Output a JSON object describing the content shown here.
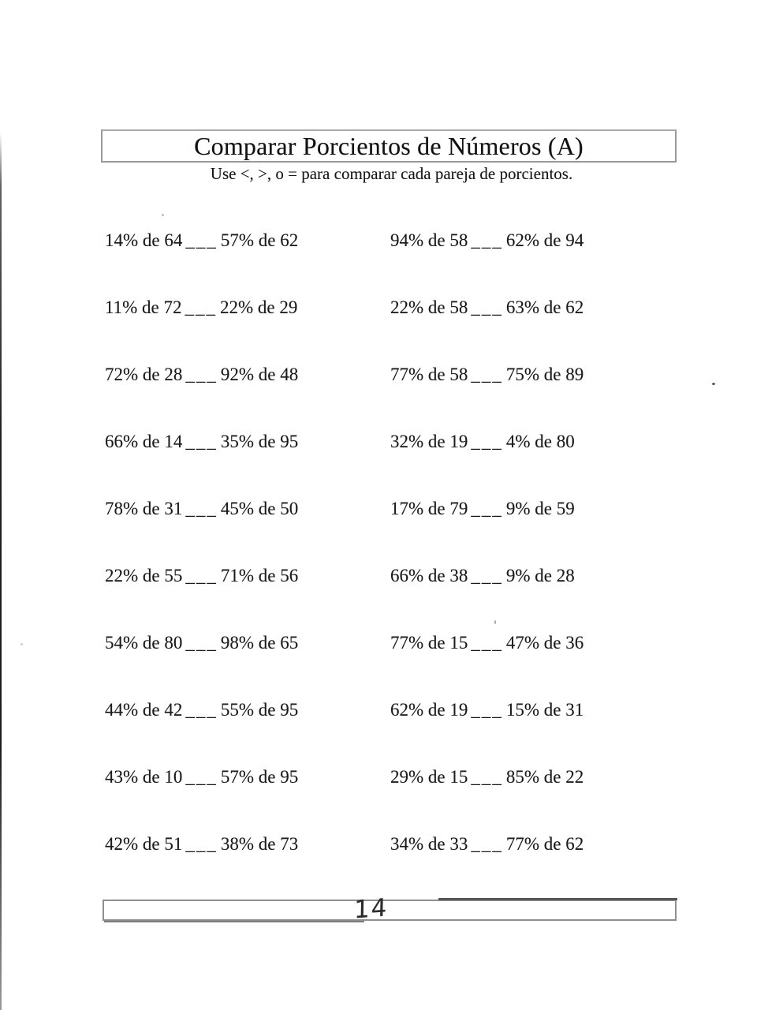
{
  "header": {
    "title": "Comparar Porcientos de Números (A)",
    "instructions": "Use <, >, o = para comparar cada pareja de porcientos."
  },
  "problems": {
    "blank_placeholder": "___",
    "rows": [
      {
        "left": {
          "a": "14% de 64",
          "b": "57% de 62"
        },
        "right": {
          "a": "94% de 58",
          "b": "62% de 94"
        }
      },
      {
        "left": {
          "a": "11% de 72",
          "b": "22% de 29"
        },
        "right": {
          "a": "22% de 58",
          "b": "63% de 62"
        }
      },
      {
        "left": {
          "a": "72% de 28",
          "b": "92% de 48"
        },
        "right": {
          "a": "77% de 58",
          "b": "75% de 89"
        }
      },
      {
        "left": {
          "a": "66% de 14",
          "b": "35% de 95"
        },
        "right": {
          "a": "32% de 19",
          "b": "4% de 80"
        }
      },
      {
        "left": {
          "a": "78% de 31",
          "b": "45% de 50"
        },
        "right": {
          "a": "17% de 79",
          "b": "9% de 59"
        }
      },
      {
        "left": {
          "a": "22% de 55",
          "b": "71% de 56"
        },
        "right": {
          "a": "66% de 38",
          "b": "9% de 28"
        }
      },
      {
        "left": {
          "a": "54% de 80",
          "b": "98% de 65"
        },
        "right": {
          "a": "77% de 15",
          "b": "47% de 36"
        }
      },
      {
        "left": {
          "a": "44% de 42",
          "b": "55% de 95"
        },
        "right": {
          "a": "62% de 19",
          "b": "15% de 31"
        }
      },
      {
        "left": {
          "a": "43% de 10",
          "b": "57% de 95"
        },
        "right": {
          "a": "29% de 15",
          "b": "85% de 22"
        }
      },
      {
        "left": {
          "a": "42% de 51",
          "b": "38% de 73"
        },
        "right": {
          "a": "34% de 33",
          "b": "77% de 62"
        }
      }
    ]
  },
  "footer": {
    "page_number": "14"
  },
  "colors": {
    "ink": "#1b1b1b",
    "box_border": "#999999",
    "handwriting": "#2b2b2b"
  }
}
